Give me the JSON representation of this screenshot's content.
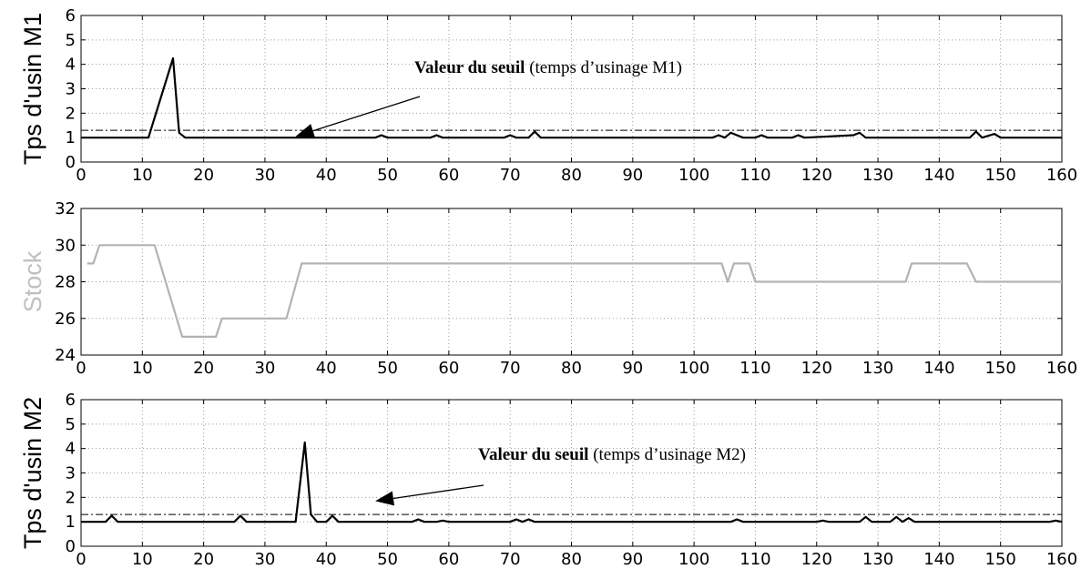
{
  "chart_data": [
    {
      "type": "line",
      "ylabel": "Tps d'usin M1",
      "xlim": [
        0,
        160
      ],
      "ylim": [
        0,
        6
      ],
      "xticks": [
        "0",
        "10",
        "20",
        "30",
        "40",
        "50",
        "60",
        "70",
        "80",
        "90",
        "100",
        "110",
        "120",
        "130",
        "140",
        "150",
        "160"
      ],
      "yticks": [
        "0",
        "1",
        "2",
        "3",
        "4",
        "5",
        "6"
      ],
      "grid": true,
      "series": [
        {
          "color": "#000000",
          "x": [
            0,
            11,
            15,
            16,
            17,
            48,
            49,
            50,
            57,
            58,
            59,
            69,
            70,
            71,
            73,
            74,
            75,
            103,
            104,
            105,
            106,
            107,
            108,
            110,
            111,
            112,
            116,
            117,
            118,
            126,
            127,
            128,
            145,
            146,
            147,
            149,
            150,
            151,
            160
          ],
          "y": [
            1,
            1,
            4.25,
            1.2,
            1,
            1,
            1.1,
            1,
            1,
            1.1,
            1,
            1,
            1.1,
            1,
            1,
            1.25,
            1,
            1,
            1.1,
            1,
            1.2,
            1.1,
            1,
            1,
            1.1,
            1,
            1,
            1.1,
            1,
            1.1,
            1.2,
            1,
            1,
            1.25,
            1,
            1.15,
            1,
            1,
            1
          ]
        }
      ],
      "threshold": {
        "y": 1.3,
        "style": "dash-dot"
      },
      "annotation": {
        "bold": "Valeur du seuil",
        "normal": " (temps d’usinage M1)",
        "arrow_to": [
          35,
          1.05
        ]
      }
    },
    {
      "type": "line",
      "ylabel": "Stock",
      "xlim": [
        0,
        160
      ],
      "ylim": [
        24,
        32
      ],
      "xticks": [
        "0",
        "10",
        "20",
        "30",
        "40",
        "50",
        "60",
        "70",
        "80",
        "90",
        "100",
        "110",
        "120",
        "130",
        "140",
        "150",
        "160"
      ],
      "yticks": [
        "24",
        "26",
        "28",
        "30",
        "32"
      ],
      "grid": true,
      "series": [
        {
          "color": "#b3b3b3",
          "x": [
            1,
            2,
            3,
            11,
            12,
            16.5,
            22,
            23,
            33.5,
            36,
            104.5,
            105.5,
            106.5,
            109,
            110,
            134.5,
            135.5,
            144.5,
            146,
            160
          ],
          "y": [
            29,
            29,
            30,
            30,
            30,
            25,
            25,
            26,
            26,
            29,
            29,
            28,
            29,
            29,
            28,
            28,
            29,
            29,
            28,
            28
          ]
        }
      ]
    },
    {
      "type": "line",
      "ylabel": "Tps d'usin M2",
      "xlim": [
        0,
        160
      ],
      "ylim": [
        0,
        6
      ],
      "xticks": [
        "0",
        "10",
        "20",
        "30",
        "40",
        "50",
        "60",
        "70",
        "80",
        "90",
        "100",
        "110",
        "120",
        "130",
        "140",
        "150",
        "160"
      ],
      "yticks": [
        "0",
        "1",
        "2",
        "3",
        "4",
        "5",
        "6"
      ],
      "grid": true,
      "series": [
        {
          "color": "#000000",
          "x": [
            0,
            4,
            5,
            6,
            25,
            26,
            27,
            35,
            36.5,
            37.5,
            38.5,
            40,
            41,
            42,
            54,
            55,
            56,
            58,
            59,
            60,
            70,
            71,
            72,
            73,
            74,
            106,
            107,
            108,
            120,
            121,
            122,
            127,
            128,
            129,
            132,
            133,
            134,
            135,
            136,
            158,
            159,
            160
          ],
          "y": [
            1,
            1,
            1.25,
            1,
            1,
            1.25,
            1,
            1,
            4.25,
            1.3,
            1,
            1,
            1.25,
            1,
            1,
            1.1,
            1,
            1,
            1.05,
            1,
            1,
            1.1,
            1,
            1.1,
            1,
            1,
            1.1,
            1,
            1,
            1.05,
            1,
            1,
            1.2,
            1,
            1,
            1.2,
            1,
            1.15,
            1,
            1,
            1.05,
            1
          ]
        }
      ],
      "threshold": {
        "y": 1.3,
        "style": "dash-dot"
      },
      "annotation": {
        "bold": "Valeur du seuil",
        "normal": " (temps d’usinage M2)",
        "arrow_to": [
          48,
          1.85
        ]
      }
    }
  ]
}
